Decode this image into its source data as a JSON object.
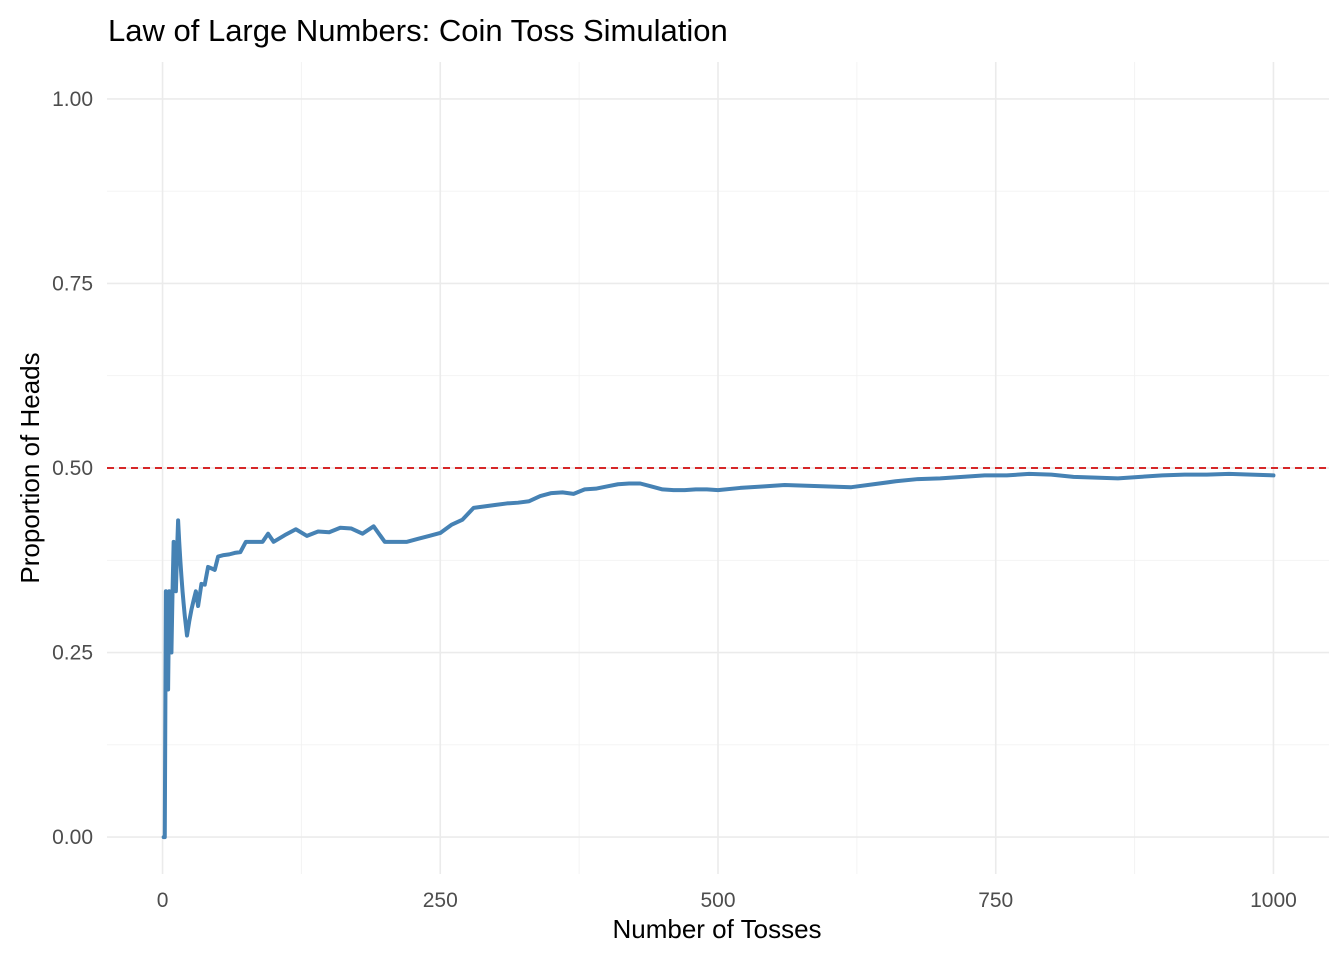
{
  "chart_data": {
    "type": "line",
    "title": "Law of Large Numbers: Coin Toss Simulation",
    "xlabel": "Number of Tosses",
    "ylabel": "Proportion of Heads",
    "xlim": [
      -50,
      1050
    ],
    "ylim": [
      -0.05,
      1.05
    ],
    "x_ticks": [
      0,
      250,
      500,
      750,
      1000
    ],
    "x_tick_labels": [
      "0",
      "250",
      "500",
      "750",
      "1000"
    ],
    "y_ticks": [
      0,
      0.25,
      0.5,
      0.75,
      1.0
    ],
    "y_tick_labels": [
      "0.00",
      "0.25",
      "0.50",
      "0.75",
      "1.00"
    ],
    "grid": true,
    "line_color": "#4682b4",
    "reference_line": {
      "y": 0.5,
      "color": "#d62728",
      "style": "dashed"
    },
    "series": [
      {
        "x": [
          1,
          2,
          3,
          4,
          5,
          6,
          7,
          8,
          9,
          10,
          11,
          12,
          13,
          14,
          15,
          16,
          17,
          18,
          19,
          20,
          22,
          24,
          26,
          28,
          30,
          32,
          35,
          38,
          41,
          44,
          47,
          50,
          55,
          60,
          65,
          70,
          75,
          80,
          85,
          90,
          95,
          100,
          110,
          120,
          130,
          140,
          150,
          160,
          170,
          180,
          190,
          200,
          210,
          220,
          230,
          240,
          250,
          260,
          270,
          280,
          290,
          300,
          310,
          320,
          330,
          340,
          350,
          360,
          370,
          380,
          390,
          400,
          410,
          420,
          430,
          440,
          450,
          460,
          470,
          480,
          490,
          500,
          520,
          540,
          560,
          580,
          600,
          620,
          640,
          660,
          680,
          700,
          720,
          740,
          760,
          780,
          800,
          820,
          840,
          860,
          880,
          900,
          920,
          940,
          960,
          980,
          1000
        ],
        "y": [
          0.0,
          0.0,
          0.333,
          0.25,
          0.2,
          0.333,
          0.286,
          0.25,
          0.333,
          0.4,
          0.364,
          0.333,
          0.385,
          0.429,
          0.4,
          0.375,
          0.353,
          0.333,
          0.316,
          0.3,
          0.273,
          0.292,
          0.308,
          0.321,
          0.333,
          0.313,
          0.343,
          0.342,
          0.366,
          0.364,
          0.362,
          0.38,
          0.382,
          0.383,
          0.385,
          0.386,
          0.4,
          0.4,
          0.4,
          0.4,
          0.411,
          0.4,
          0.409,
          0.417,
          0.408,
          0.414,
          0.413,
          0.419,
          0.418,
          0.411,
          0.421,
          0.4,
          0.4,
          0.4,
          0.404,
          0.408,
          0.412,
          0.423,
          0.43,
          0.446,
          0.448,
          0.45,
          0.452,
          0.453,
          0.455,
          0.462,
          0.466,
          0.467,
          0.465,
          0.471,
          0.472,
          0.475,
          0.478,
          0.479,
          0.479,
          0.475,
          0.471,
          0.47,
          0.47,
          0.471,
          0.471,
          0.47,
          0.473,
          0.475,
          0.477,
          0.476,
          0.475,
          0.474,
          0.478,
          0.482,
          0.485,
          0.486,
          0.488,
          0.49,
          0.49,
          0.492,
          0.491,
          0.488,
          0.487,
          0.486,
          0.488,
          0.49,
          0.491,
          0.491,
          0.492,
          0.491,
          0.49
        ]
      }
    ]
  }
}
